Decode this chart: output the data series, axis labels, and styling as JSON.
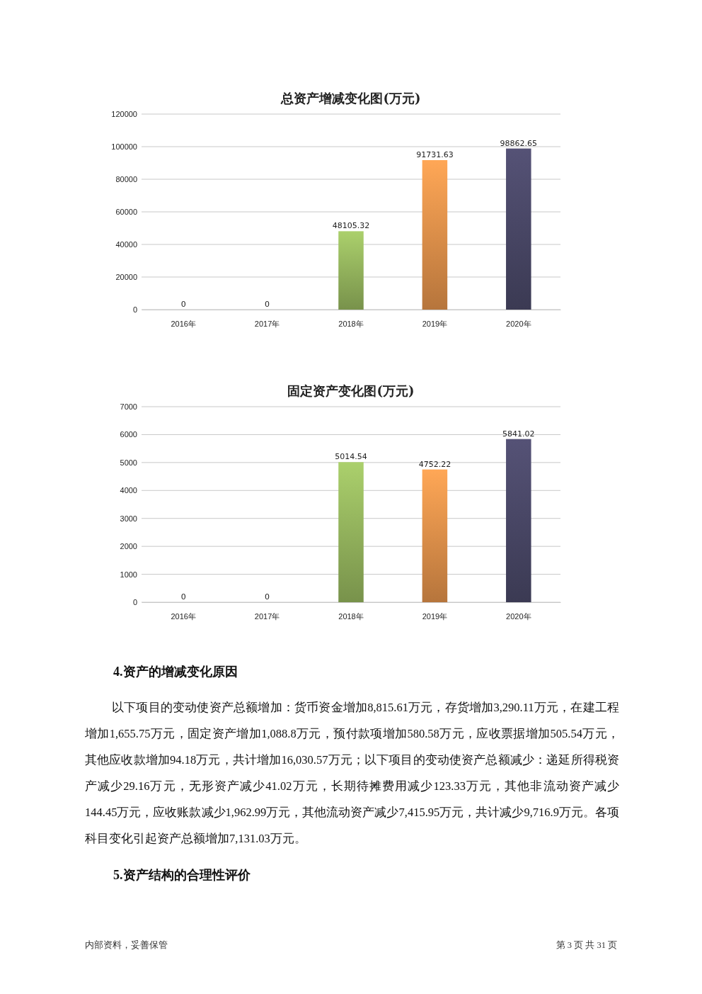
{
  "chart_data": [
    {
      "type": "bar",
      "title": "总资产增减变化图(万元)",
      "categories": [
        "2016年",
        "2017年",
        "2018年",
        "2019年",
        "2020年"
      ],
      "values": [
        0,
        0,
        48105.32,
        91731.63,
        98862.65
      ],
      "colors": [
        "#8fae5a",
        "#8fae5a",
        "#8fae5a",
        "#d98c48",
        "#474563"
      ],
      "ylim": [
        0,
        120000
      ],
      "yticks": [
        0,
        20000,
        40000,
        60000,
        80000,
        100000,
        120000
      ],
      "grid": "y",
      "data_labels": true
    },
    {
      "type": "bar",
      "title": "固定资产变化图(万元)",
      "categories": [
        "2016年",
        "2017年",
        "2018年",
        "2019年",
        "2020年"
      ],
      "values": [
        0,
        0,
        5014.54,
        4752.22,
        5841.02
      ],
      "colors": [
        "#8fae5a",
        "#8fae5a",
        "#8fae5a",
        "#d98c48",
        "#474563"
      ],
      "ylim": [
        0,
        7000
      ],
      "yticks": [
        0,
        1000,
        2000,
        3000,
        4000,
        5000,
        6000,
        7000
      ],
      "grid": "y",
      "data_labels": true,
      "annotations": [
        "4.资产的增减变化原因",
        "以下项目的变动使资产总额增加：货币资金增加8,815.61万元，存货增加3,290.11万元，在建工程增加1,655.75万元，固定资产增加1,088.8万元，预付款项增加580.58万元，应收票据增加505.54万元，其他应收款增加94.18万元，共计增加16,030.57万元；以下项目的变动使资产总额减少：递延所得税资产减少29.16万元，无形资产减少41.02万元，长期待摊费用减少123.33万元，其他非流动资产减少144.45万元，应收账款减少1,962.99万元，其他流动资产减少7,415.95万元，共计减少9,716.9万元。各项科目变化引起资产总额增加7,131.03万元。",
        "5.资产结构的合理性评价",
        "内部资料，妥善保管",
        "第 3 页   共 31 页"
      ]
    }
  ]
}
